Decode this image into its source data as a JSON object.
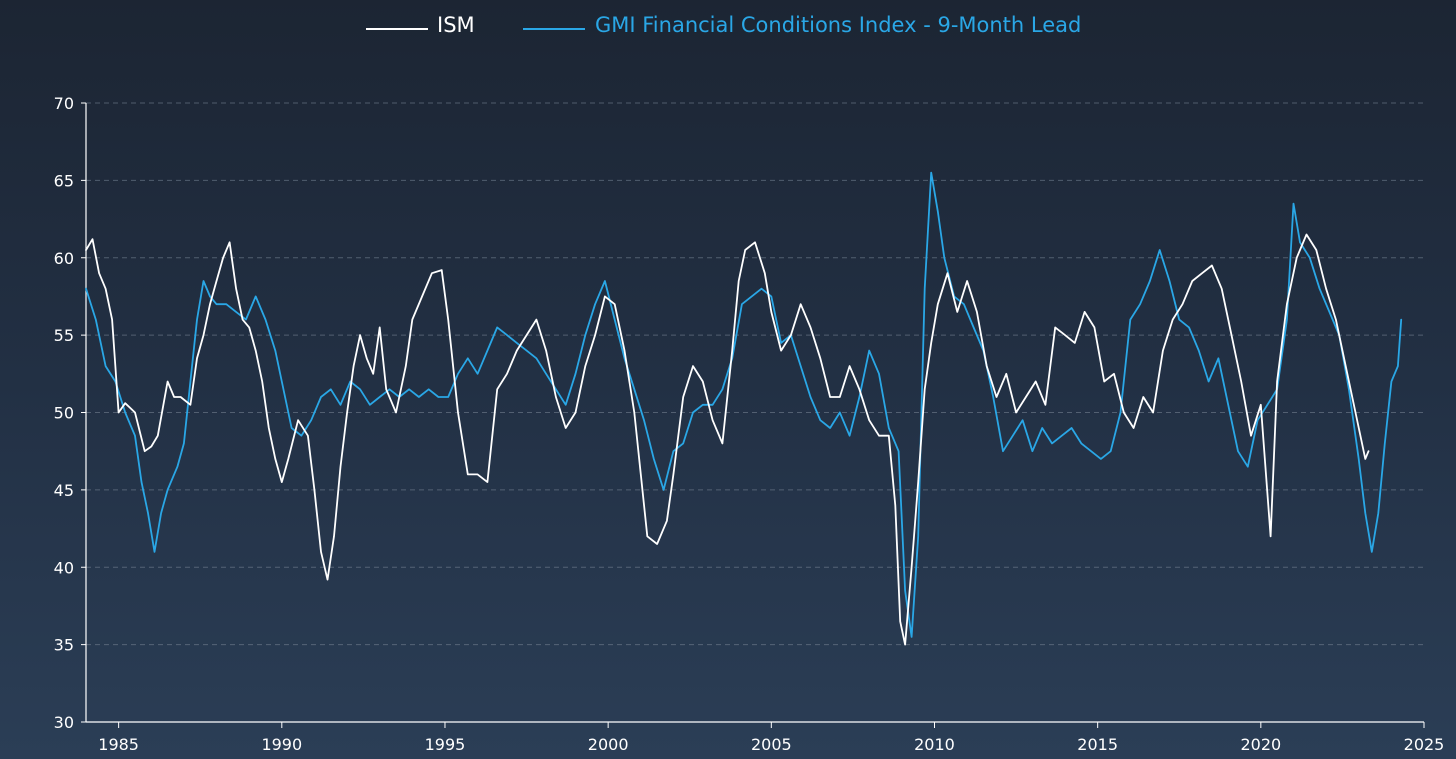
{
  "chart_data": {
    "type": "line",
    "title": "",
    "xlabel": "",
    "ylabel": "",
    "xlim": [
      1984.0,
      2025.0
    ],
    "ylim": [
      30,
      70
    ],
    "grid": true,
    "legend_position": "top-center",
    "x_ticks": [
      1985,
      1990,
      1995,
      2000,
      2005,
      2010,
      2015,
      2020,
      2025
    ],
    "y_ticks": [
      30,
      35,
      40,
      45,
      50,
      55,
      60,
      65,
      70
    ],
    "series": [
      {
        "name": "ISM",
        "color": "#ffffff",
        "points": [
          [
            1984.0,
            60.5
          ],
          [
            1984.2,
            61.2
          ],
          [
            1984.4,
            59.0
          ],
          [
            1984.6,
            58.0
          ],
          [
            1984.8,
            56.0
          ],
          [
            1985.0,
            50.0
          ],
          [
            1985.2,
            50.6
          ],
          [
            1985.5,
            50.0
          ],
          [
            1985.8,
            47.5
          ],
          [
            1986.0,
            47.8
          ],
          [
            1986.2,
            48.5
          ],
          [
            1986.5,
            52.0
          ],
          [
            1986.7,
            51.0
          ],
          [
            1986.9,
            51.0
          ],
          [
            1987.2,
            50.5
          ],
          [
            1987.4,
            53.5
          ],
          [
            1987.6,
            55.0
          ],
          [
            1987.8,
            57.0
          ],
          [
            1988.0,
            58.5
          ],
          [
            1988.2,
            60.0
          ],
          [
            1988.4,
            61.0
          ],
          [
            1988.6,
            58.0
          ],
          [
            1988.8,
            56.0
          ],
          [
            1989.0,
            55.5
          ],
          [
            1989.2,
            54.0
          ],
          [
            1989.4,
            52.0
          ],
          [
            1989.6,
            49.0
          ],
          [
            1989.8,
            47.0
          ],
          [
            1990.0,
            45.5
          ],
          [
            1990.2,
            47.0
          ],
          [
            1990.5,
            49.5
          ],
          [
            1990.8,
            48.5
          ],
          [
            1991.0,
            45.0
          ],
          [
            1991.2,
            41.0
          ],
          [
            1991.4,
            39.2
          ],
          [
            1991.6,
            42.0
          ],
          [
            1991.8,
            46.5
          ],
          [
            1992.0,
            50.0
          ],
          [
            1992.2,
            53.0
          ],
          [
            1992.4,
            55.0
          ],
          [
            1992.6,
            53.5
          ],
          [
            1992.8,
            52.5
          ],
          [
            1993.0,
            55.5
          ],
          [
            1993.2,
            51.5
          ],
          [
            1993.5,
            50.0
          ],
          [
            1993.8,
            53.0
          ],
          [
            1994.0,
            56.0
          ],
          [
            1994.3,
            57.5
          ],
          [
            1994.6,
            59.0
          ],
          [
            1994.9,
            59.2
          ],
          [
            1995.1,
            56.0
          ],
          [
            1995.4,
            50.0
          ],
          [
            1995.7,
            46.0
          ],
          [
            1996.0,
            46.0
          ],
          [
            1996.3,
            45.5
          ],
          [
            1996.6,
            51.5
          ],
          [
            1996.9,
            52.5
          ],
          [
            1997.2,
            54.0
          ],
          [
            1997.5,
            55.0
          ],
          [
            1997.8,
            56.0
          ],
          [
            1998.1,
            54.0
          ],
          [
            1998.4,
            51.0
          ],
          [
            1998.7,
            49.0
          ],
          [
            1999.0,
            50.0
          ],
          [
            1999.3,
            53.0
          ],
          [
            1999.6,
            55.0
          ],
          [
            1999.9,
            57.5
          ],
          [
            2000.2,
            57.0
          ],
          [
            2000.5,
            54.0
          ],
          [
            2000.8,
            50.0
          ],
          [
            2001.0,
            46.0
          ],
          [
            2001.2,
            42.0
          ],
          [
            2001.5,
            41.5
          ],
          [
            2001.8,
            43.0
          ],
          [
            2002.0,
            46.0
          ],
          [
            2002.3,
            51.0
          ],
          [
            2002.6,
            53.0
          ],
          [
            2002.9,
            52.0
          ],
          [
            2003.2,
            49.5
          ],
          [
            2003.5,
            48.0
          ],
          [
            2003.8,
            54.0
          ],
          [
            2004.0,
            58.5
          ],
          [
            2004.2,
            60.5
          ],
          [
            2004.5,
            61.0
          ],
          [
            2004.8,
            59.0
          ],
          [
            2005.0,
            56.5
          ],
          [
            2005.3,
            54.0
          ],
          [
            2005.6,
            55.0
          ],
          [
            2005.9,
            57.0
          ],
          [
            2006.2,
            55.5
          ],
          [
            2006.5,
            53.5
          ],
          [
            2006.8,
            51.0
          ],
          [
            2007.1,
            51.0
          ],
          [
            2007.4,
            53.0
          ],
          [
            2007.7,
            51.5
          ],
          [
            2008.0,
            49.5
          ],
          [
            2008.3,
            48.5
          ],
          [
            2008.6,
            48.5
          ],
          [
            2008.8,
            44.0
          ],
          [
            2008.95,
            36.5
          ],
          [
            2009.1,
            35.0
          ],
          [
            2009.3,
            40.0
          ],
          [
            2009.5,
            45.5
          ],
          [
            2009.7,
            51.5
          ],
          [
            2009.9,
            54.5
          ],
          [
            2010.1,
            57.0
          ],
          [
            2010.4,
            59.0
          ],
          [
            2010.7,
            56.5
          ],
          [
            2011.0,
            58.5
          ],
          [
            2011.3,
            56.5
          ],
          [
            2011.6,
            53.0
          ],
          [
            2011.9,
            51.0
          ],
          [
            2012.2,
            52.5
          ],
          [
            2012.5,
            50.0
          ],
          [
            2012.8,
            51.0
          ],
          [
            2013.1,
            52.0
          ],
          [
            2013.4,
            50.5
          ],
          [
            2013.7,
            55.5
          ],
          [
            2014.0,
            55.0
          ],
          [
            2014.3,
            54.5
          ],
          [
            2014.6,
            56.5
          ],
          [
            2014.9,
            55.5
          ],
          [
            2015.2,
            52.0
          ],
          [
            2015.5,
            52.5
          ],
          [
            2015.8,
            50.0
          ],
          [
            2016.1,
            49.0
          ],
          [
            2016.4,
            51.0
          ],
          [
            2016.7,
            50.0
          ],
          [
            2017.0,
            54.0
          ],
          [
            2017.3,
            56.0
          ],
          [
            2017.6,
            57.0
          ],
          [
            2017.9,
            58.5
          ],
          [
            2018.2,
            59.0
          ],
          [
            2018.5,
            59.5
          ],
          [
            2018.8,
            58.0
          ],
          [
            2019.1,
            55.0
          ],
          [
            2019.4,
            52.0
          ],
          [
            2019.7,
            48.5
          ],
          [
            2020.0,
            50.5
          ],
          [
            2020.3,
            42.0
          ],
          [
            2020.5,
            52.0
          ],
          [
            2020.8,
            57.0
          ],
          [
            2021.1,
            60.0
          ],
          [
            2021.4,
            61.5
          ],
          [
            2021.7,
            60.5
          ],
          [
            2022.0,
            58.0
          ],
          [
            2022.3,
            56.0
          ],
          [
            2022.6,
            53.0
          ],
          [
            2022.9,
            50.0
          ],
          [
            2023.2,
            47.0
          ],
          [
            2023.3,
            47.5
          ]
        ]
      },
      {
        "name": "GMI Financial Conditions Index - 9-Month Lead",
        "color": "#2aa7e6",
        "points": [
          [
            1984.0,
            58.0
          ],
          [
            1984.3,
            56.0
          ],
          [
            1984.6,
            53.0
          ],
          [
            1984.9,
            52.0
          ],
          [
            1985.2,
            50.0
          ],
          [
            1985.5,
            48.5
          ],
          [
            1985.7,
            45.5
          ],
          [
            1985.9,
            43.5
          ],
          [
            1986.1,
            41.0
          ],
          [
            1986.3,
            43.5
          ],
          [
            1986.5,
            45.0
          ],
          [
            1986.8,
            46.5
          ],
          [
            1987.0,
            48.0
          ],
          [
            1987.2,
            52.0
          ],
          [
            1987.4,
            56.0
          ],
          [
            1987.6,
            58.5
          ],
          [
            1987.8,
            57.5
          ],
          [
            1988.0,
            57.0
          ],
          [
            1988.3,
            57.0
          ],
          [
            1988.6,
            56.5
          ],
          [
            1988.9,
            56.0
          ],
          [
            1989.2,
            57.5
          ],
          [
            1989.5,
            56.0
          ],
          [
            1989.8,
            54.0
          ],
          [
            1990.0,
            52.0
          ],
          [
            1990.3,
            49.0
          ],
          [
            1990.6,
            48.5
          ],
          [
            1990.9,
            49.5
          ],
          [
            1991.2,
            51.0
          ],
          [
            1991.5,
            51.5
          ],
          [
            1991.8,
            50.5
          ],
          [
            1992.1,
            52.0
          ],
          [
            1992.4,
            51.5
          ],
          [
            1992.7,
            50.5
          ],
          [
            1993.0,
            51.0
          ],
          [
            1993.3,
            51.5
          ],
          [
            1993.6,
            51.0
          ],
          [
            1993.9,
            51.5
          ],
          [
            1994.2,
            51.0
          ],
          [
            1994.5,
            51.5
          ],
          [
            1994.8,
            51.0
          ],
          [
            1995.1,
            51.0
          ],
          [
            1995.4,
            52.5
          ],
          [
            1995.7,
            53.5
          ],
          [
            1996.0,
            52.5
          ],
          [
            1996.3,
            54.0
          ],
          [
            1996.6,
            55.5
          ],
          [
            1996.9,
            55.0
          ],
          [
            1997.2,
            54.5
          ],
          [
            1997.5,
            54.0
          ],
          [
            1997.8,
            53.5
          ],
          [
            1998.1,
            52.5
          ],
          [
            1998.4,
            51.5
          ],
          [
            1998.7,
            50.5
          ],
          [
            1999.0,
            52.5
          ],
          [
            1999.3,
            55.0
          ],
          [
            1999.6,
            57.0
          ],
          [
            1999.9,
            58.5
          ],
          [
            2000.2,
            56.0
          ],
          [
            2000.5,
            53.5
          ],
          [
            2000.8,
            51.5
          ],
          [
            2001.1,
            49.5
          ],
          [
            2001.4,
            47.0
          ],
          [
            2001.7,
            45.0
          ],
          [
            2002.0,
            47.5
          ],
          [
            2002.3,
            48.0
          ],
          [
            2002.6,
            50.0
          ],
          [
            2002.9,
            50.5
          ],
          [
            2003.2,
            50.5
          ],
          [
            2003.5,
            51.5
          ],
          [
            2003.8,
            53.5
          ],
          [
            2004.1,
            57.0
          ],
          [
            2004.4,
            57.5
          ],
          [
            2004.7,
            58.0
          ],
          [
            2005.0,
            57.5
          ],
          [
            2005.3,
            54.5
          ],
          [
            2005.6,
            55.0
          ],
          [
            2005.9,
            53.0
          ],
          [
            2006.2,
            51.0
          ],
          [
            2006.5,
            49.5
          ],
          [
            2006.8,
            49.0
          ],
          [
            2007.1,
            50.0
          ],
          [
            2007.4,
            48.5
          ],
          [
            2007.7,
            51.0
          ],
          [
            2008.0,
            54.0
          ],
          [
            2008.3,
            52.5
          ],
          [
            2008.6,
            49.0
          ],
          [
            2008.9,
            47.5
          ],
          [
            2009.1,
            38.5
          ],
          [
            2009.3,
            35.5
          ],
          [
            2009.5,
            42.0
          ],
          [
            2009.7,
            58.0
          ],
          [
            2009.9,
            65.5
          ],
          [
            2010.1,
            63.0
          ],
          [
            2010.3,
            60.0
          ],
          [
            2010.6,
            57.5
          ],
          [
            2010.9,
            57.0
          ],
          [
            2011.2,
            55.5
          ],
          [
            2011.5,
            54.0
          ],
          [
            2011.8,
            51.0
          ],
          [
            2012.1,
            47.5
          ],
          [
            2012.4,
            48.5
          ],
          [
            2012.7,
            49.5
          ],
          [
            2013.0,
            47.5
          ],
          [
            2013.3,
            49.0
          ],
          [
            2013.6,
            48.0
          ],
          [
            2013.9,
            48.5
          ],
          [
            2014.2,
            49.0
          ],
          [
            2014.5,
            48.0
          ],
          [
            2014.8,
            47.5
          ],
          [
            2015.1,
            47.0
          ],
          [
            2015.4,
            47.5
          ],
          [
            2015.7,
            50.0
          ],
          [
            2016.0,
            56.0
          ],
          [
            2016.3,
            57.0
          ],
          [
            2016.6,
            58.5
          ],
          [
            2016.9,
            60.5
          ],
          [
            2017.2,
            58.5
          ],
          [
            2017.5,
            56.0
          ],
          [
            2017.8,
            55.5
          ],
          [
            2018.1,
            54.0
          ],
          [
            2018.4,
            52.0
          ],
          [
            2018.7,
            53.5
          ],
          [
            2019.0,
            50.5
          ],
          [
            2019.3,
            47.5
          ],
          [
            2019.6,
            46.5
          ],
          [
            2019.9,
            49.5
          ],
          [
            2020.2,
            50.5
          ],
          [
            2020.5,
            51.5
          ],
          [
            2020.8,
            56.0
          ],
          [
            2021.0,
            63.5
          ],
          [
            2021.2,
            61.0
          ],
          [
            2021.5,
            60.0
          ],
          [
            2021.8,
            58.0
          ],
          [
            2022.1,
            56.5
          ],
          [
            2022.4,
            55.0
          ],
          [
            2022.7,
            51.5
          ],
          [
            2023.0,
            47.0
          ],
          [
            2023.2,
            43.5
          ],
          [
            2023.4,
            41.0
          ],
          [
            2023.6,
            43.5
          ],
          [
            2023.8,
            48.0
          ],
          [
            2024.0,
            52.0
          ],
          [
            2024.2,
            53.0
          ],
          [
            2024.3,
            56.0
          ]
        ]
      }
    ]
  }
}
